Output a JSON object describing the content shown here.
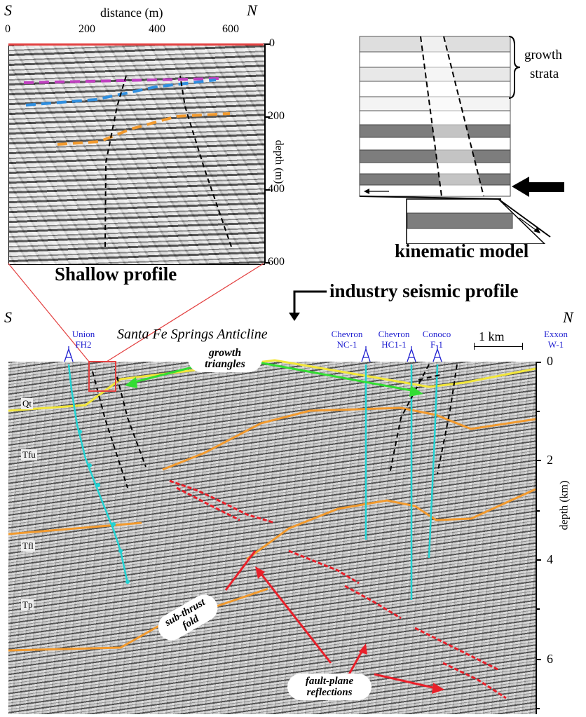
{
  "shallow": {
    "south": "S",
    "north": "N",
    "x_axis_title": "distance (m)",
    "x_ticks": [
      "0",
      "200",
      "400",
      "600"
    ],
    "y_axis_title": "depth (m)",
    "y_ticks": [
      "0",
      "200",
      "400",
      "600"
    ],
    "caption": "Shallow profile"
  },
  "kinematic": {
    "growth_label_1": "growth",
    "growth_label_2": "strata",
    "caption": "kinematic model"
  },
  "industry": {
    "title": "industry seismic profile",
    "south": "S",
    "north": "N",
    "anticline": "Santa Fe Springs Anticline",
    "scale_bar": "1 km",
    "wells": [
      {
        "line1": "Union",
        "line2": "FH2"
      },
      {
        "line1": "Chevron",
        "line2": "NC-1"
      },
      {
        "line1": "Chevron",
        "line2": "HC1-1"
      },
      {
        "line1": "Conoco",
        "line2": "F-1"
      },
      {
        "line1": "Exxon",
        "line2": "W-1"
      }
    ],
    "units": [
      "Qt",
      "Tfu",
      "Tfl",
      "Tp"
    ],
    "depth_axis_title": "depth (km)",
    "depth_ticks": [
      "0",
      "2",
      "4",
      "6"
    ],
    "annotations": {
      "growth_1": "growth",
      "growth_2": "triangles",
      "subthrust_1": "sub-thrust",
      "subthrust_2": "fold",
      "faultplane_1": "fault-plane",
      "faultplane_2": "reflections"
    }
  },
  "colors": {
    "horizon_yellow": "#f2e63a",
    "horizon_orange": "#f29a2e",
    "well_cyan": "#22d3d3",
    "fault_red": "#e8202a",
    "arrow_green": "#33dd33",
    "blue_dash": "#2f8fe0",
    "pink_dash": "#c040c0"
  }
}
